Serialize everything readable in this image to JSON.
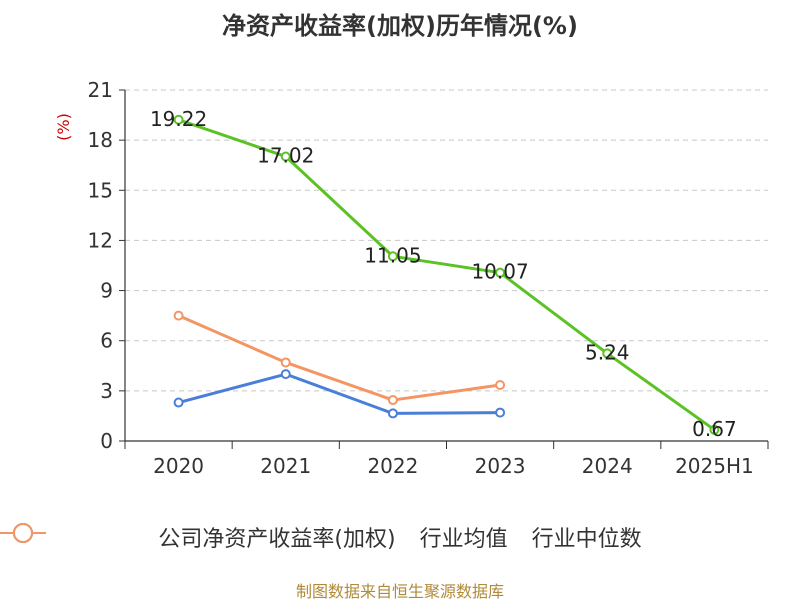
{
  "title": "净资产收益率(加权)历年情况(%)",
  "source": "制图数据来自恒生聚源数据库",
  "chart_data": {
    "type": "line",
    "title": "净资产收益率(加权)历年情况(%)",
    "ylabel": "(%)",
    "categories": [
      "2020",
      "2021",
      "2022",
      "2023",
      "2024",
      "2025H1"
    ],
    "ylim": [
      0,
      21
    ],
    "yticks": [
      0,
      3,
      6,
      9,
      12,
      15,
      18,
      21
    ],
    "grid": true,
    "legend_position": "bottom",
    "series": [
      {
        "name": "公司净资产收益率(加权)",
        "color": "#5bc225",
        "values": [
          19.22,
          17.02,
          11.05,
          10.07,
          5.24,
          0.67
        ],
        "labels": [
          "19.22",
          "17.02",
          "11.05",
          "10.07",
          "5.24",
          "0.67"
        ]
      },
      {
        "name": "行业均值",
        "color": "#4a7fd9",
        "values": [
          2.3,
          4.0,
          1.65,
          1.7,
          null,
          null
        ]
      },
      {
        "name": "行业中位数",
        "color": "#f59564",
        "values": [
          7.5,
          4.7,
          2.45,
          3.35,
          null,
          null
        ]
      }
    ]
  }
}
